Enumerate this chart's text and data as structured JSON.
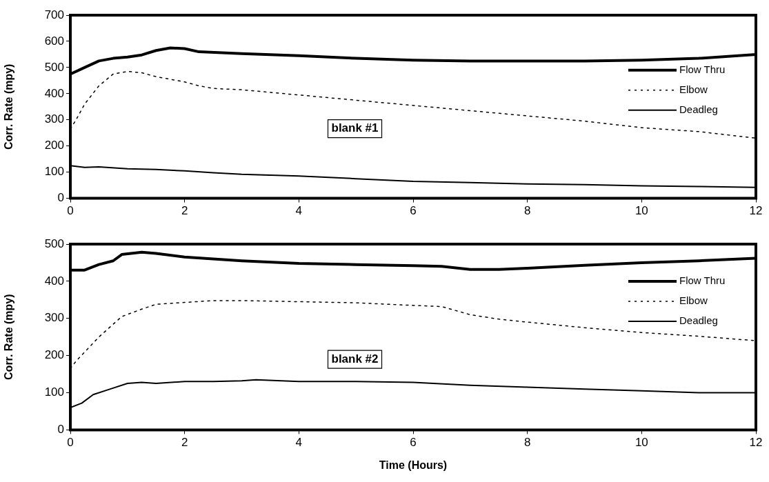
{
  "chart_data": [
    {
      "type": "line",
      "ylabel": "Corr. Rate (mpy)",
      "xlim": [
        0,
        12
      ],
      "xticks": [
        0,
        2,
        4,
        6,
        8,
        10,
        12
      ],
      "ylim": [
        0,
        700
      ],
      "yticks": [
        0,
        100,
        200,
        300,
        400,
        500,
        600,
        700
      ],
      "grid": false,
      "legend": "right",
      "marker": "none",
      "annotations": [
        "blank #1"
      ],
      "series": [
        {
          "name": "Flow Thru",
          "color": "#000000",
          "line_style": "solid",
          "x": [
            0,
            0.25,
            0.5,
            0.75,
            1,
            1.25,
            1.5,
            1.75,
            2,
            2.25,
            3,
            4,
            5,
            6,
            7,
            8,
            9,
            10,
            11,
            12
          ],
          "values": [
            475,
            500,
            525,
            535,
            540,
            548,
            565,
            575,
            572,
            560,
            553,
            545,
            535,
            528,
            525,
            525,
            525,
            528,
            535,
            550
          ]
        },
        {
          "name": "Elbow",
          "color": "#000000",
          "line_style": "dotted",
          "x": [
            0,
            0.1,
            0.25,
            0.5,
            0.75,
            1,
            1.25,
            1.5,
            2,
            2.25,
            2.5,
            3,
            4,
            5,
            6,
            7,
            8,
            9,
            10,
            11,
            12
          ],
          "values": [
            265,
            300,
            360,
            430,
            475,
            485,
            480,
            465,
            445,
            430,
            420,
            415,
            395,
            375,
            355,
            335,
            315,
            295,
            270,
            255,
            230
          ]
        },
        {
          "name": "Deadleg",
          "color": "#000000",
          "line_style": "solid",
          "x": [
            0,
            0.25,
            0.5,
            1,
            1.5,
            2,
            2.5,
            3,
            4,
            5,
            6,
            7,
            8,
            9,
            10,
            11,
            12
          ],
          "values": [
            125,
            118,
            120,
            113,
            110,
            105,
            98,
            92,
            85,
            75,
            65,
            60,
            55,
            52,
            48,
            45,
            42
          ]
        }
      ]
    },
    {
      "type": "line",
      "xlabel": "Time (Hours)",
      "ylabel": "Corr. Rate (mpy)",
      "xlim": [
        0,
        12
      ],
      "xticks": [
        0,
        2,
        4,
        6,
        8,
        10,
        12
      ],
      "ylim": [
        0,
        500
      ],
      "yticks": [
        0,
        100,
        200,
        300,
        400,
        500
      ],
      "grid": false,
      "legend": "right",
      "marker": "none",
      "annotations": [
        "blank #2"
      ],
      "series": [
        {
          "name": "Flow Thru",
          "color": "#000000",
          "line_style": "solid",
          "x": [
            0,
            0.25,
            0.5,
            0.75,
            0.9,
            1.25,
            1.5,
            2,
            3,
            4,
            5,
            6,
            6.5,
            7,
            7.5,
            8,
            9,
            10,
            11,
            12
          ],
          "values": [
            430,
            430,
            445,
            455,
            472,
            478,
            475,
            465,
            455,
            448,
            445,
            442,
            440,
            432,
            432,
            435,
            443,
            450,
            455,
            462
          ]
        },
        {
          "name": "Elbow",
          "color": "#000000",
          "line_style": "dotted",
          "x": [
            0,
            0.1,
            0.5,
            0.9,
            1.25,
            1.5,
            2,
            2.5,
            3,
            4,
            5,
            6,
            6.5,
            7,
            7.5,
            8,
            9,
            10,
            11,
            12
          ],
          "values": [
            165,
            185,
            250,
            305,
            325,
            338,
            343,
            348,
            348,
            345,
            342,
            335,
            332,
            310,
            298,
            290,
            275,
            262,
            252,
            240
          ]
        },
        {
          "name": "Deadleg",
          "color": "#000000",
          "line_style": "solid",
          "x": [
            0,
            0.2,
            0.4,
            0.7,
            1,
            1.25,
            1.5,
            2,
            2.5,
            3,
            3.25,
            4,
            5,
            6,
            7,
            8,
            9,
            10,
            11,
            12
          ],
          "values": [
            60,
            72,
            95,
            110,
            125,
            128,
            125,
            130,
            130,
            132,
            135,
            130,
            130,
            128,
            120,
            115,
            110,
            105,
            100,
            100
          ]
        }
      ]
    }
  ]
}
